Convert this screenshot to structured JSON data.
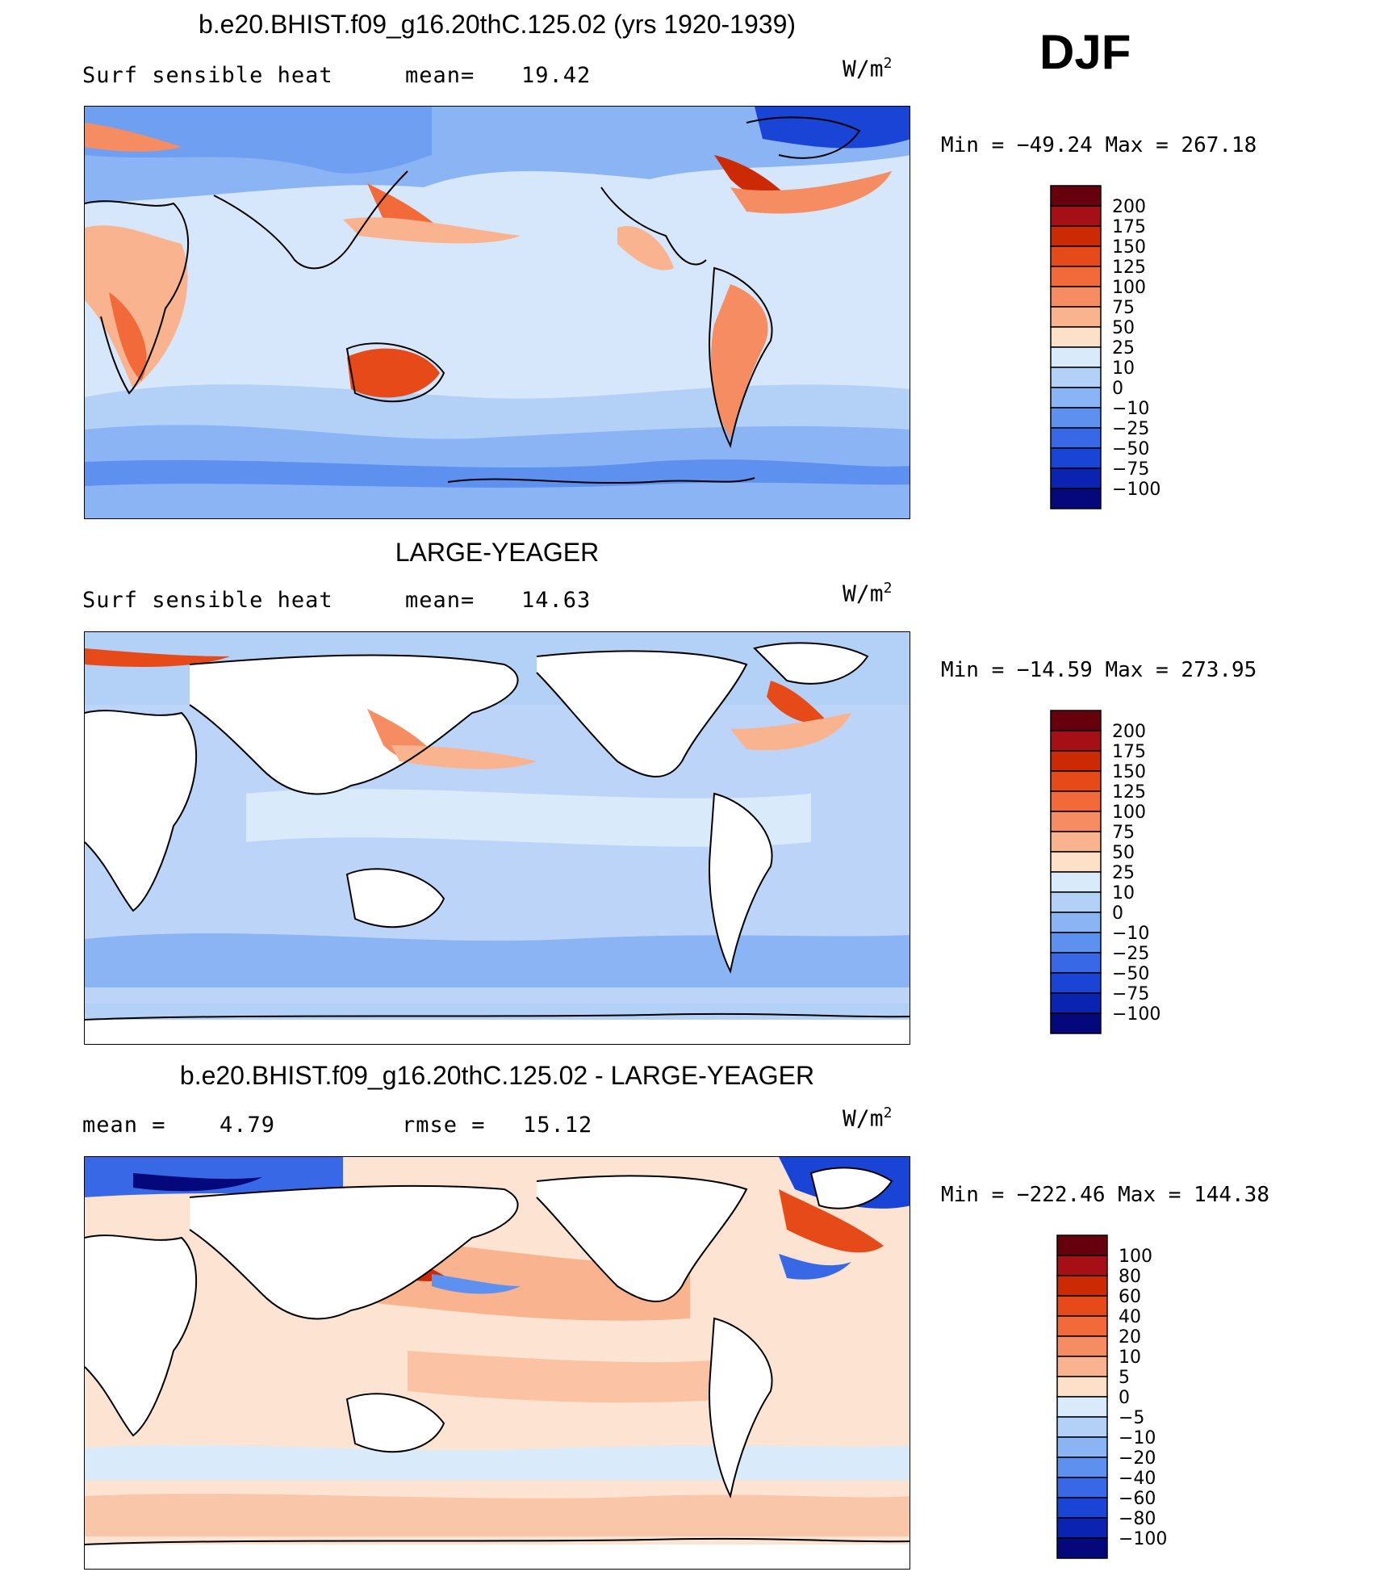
{
  "season": "DJF",
  "units": "W/m",
  "units_sup": "2",
  "panels": [
    {
      "title": "b.e20.BHIST.f09_g16.20thC.125.02 (yrs 1920-1939)",
      "left_label": "Surf sensible heat",
      "stat_label": "mean=",
      "stat_value": "19.42",
      "min_max": "Min = −49.24 Max = 267.18",
      "colorbar": [
        "200",
        "175",
        "150",
        "125",
        "100",
        "75",
        "50",
        "25",
        "10",
        "0",
        "−10",
        "−25",
        "−50",
        "−75",
        "−100"
      ]
    },
    {
      "title": "LARGE-YEAGER",
      "left_label": "Surf sensible heat",
      "stat_label": "mean=",
      "stat_value": "14.63",
      "min_max": "Min = −14.59 Max = 273.95",
      "colorbar": [
        "200",
        "175",
        "150",
        "125",
        "100",
        "75",
        "50",
        "25",
        "10",
        "0",
        "−10",
        "−25",
        "−50",
        "−75",
        "−100"
      ]
    },
    {
      "title": "b.e20.BHIST.f09_g16.20thC.125.02 - LARGE-YEAGER",
      "left_label": "mean =",
      "left_value": "4.79",
      "stat_label": "rmse =",
      "stat_value": "15.12",
      "min_max": "Min = −222.46 Max = 144.38",
      "colorbar": [
        "100",
        "80",
        "60",
        "40",
        "20",
        "10",
        "5",
        "0",
        "−5",
        "−10",
        "−20",
        "−40",
        "−60",
        "−80",
        "−100"
      ]
    }
  ],
  "colors": {
    "scale": [
      "#67000d",
      "#a50f15",
      "#cb2a04",
      "#e64a19",
      "#f26a3a",
      "#f68d62",
      "#f9b38e",
      "#fde0c8",
      "#d9ebfa",
      "#b3d1f7",
      "#8ab4f4",
      "#5e91ef",
      "#3968e6",
      "#1a44d6",
      "#0a23b0",
      "#04087a"
    ],
    "ocean_base_1": "#d6e7fb",
    "ocean_base_2": "#bcd4f8",
    "ocean_base_3": "#fde4d2",
    "land_outline": "#000000"
  }
}
